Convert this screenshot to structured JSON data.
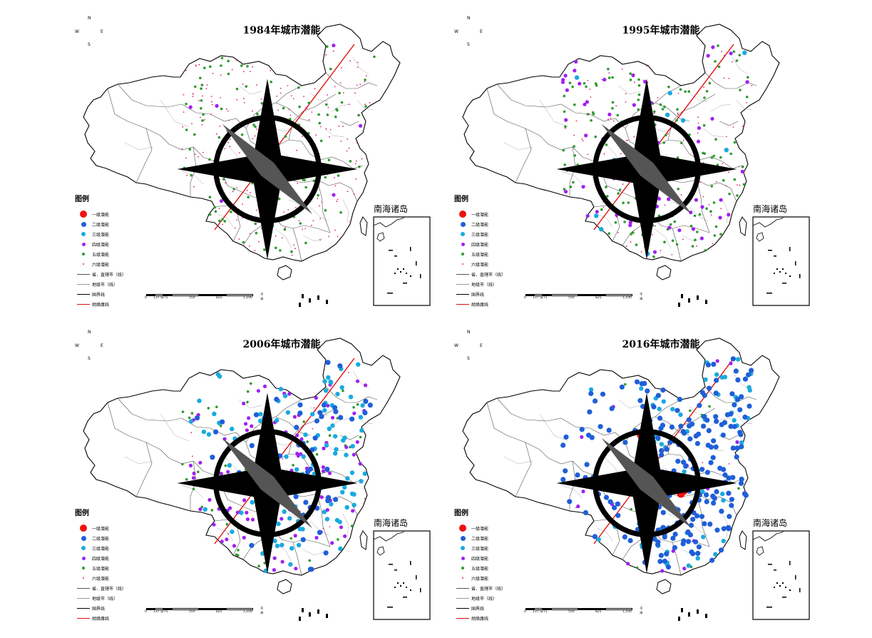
{
  "colors": {
    "level1": "#f01010",
    "level2": "#1f5fd8",
    "level3": "#1aa9e0",
    "level4": "#a020f0",
    "level5": "#2e9a2e",
    "level6": "#e0207a",
    "hu_line": "#e01010",
    "border": "#000000"
  },
  "compass": {
    "n": "N",
    "s": "S",
    "e": "E",
    "w": "W"
  },
  "inset_label": "南海诸岛",
  "legend": {
    "title": "图例",
    "items": [
      {
        "label": "一级潜能",
        "level": "level1",
        "kind": "dot",
        "r": 5
      },
      {
        "label": "二级潜能",
        "level": "level2",
        "kind": "dot",
        "r": 3.5
      },
      {
        "label": "三级潜能",
        "level": "level3",
        "kind": "dot",
        "r": 3
      },
      {
        "label": "四级潜能",
        "level": "level4",
        "kind": "dot",
        "r": 2.5
      },
      {
        "label": "五级潜能",
        "level": "level5",
        "kind": "dot",
        "r": 2
      },
      {
        "label": "六级潜能",
        "level": "level6",
        "kind": "dot",
        "r": 1
      },
      {
        "label": "省、直辖市（线）",
        "kind": "line",
        "stroke": "#555555"
      },
      {
        "label": "地级市（线）",
        "kind": "line",
        "stroke": "#999999"
      },
      {
        "label": "国界线",
        "kind": "line",
        "stroke": "#000000"
      },
      {
        "label": "胡焕庸线",
        "kind": "line",
        "stroke": "#e01010"
      }
    ]
  },
  "scale_bar": {
    "ticks": [
      "0",
      "137.5",
      "275",
      "550",
      "825",
      "1,100"
    ],
    "unit": "千米"
  },
  "maps": [
    {
      "year": 1984,
      "title": "1984年城市潜能",
      "distribution": {
        "level1": 0,
        "level2": 0,
        "level3": 0,
        "level4": 6,
        "level5": 120,
        "level6": 210
      }
    },
    {
      "year": 1995,
      "title": "1995年城市潜能",
      "distribution": {
        "level1": 0,
        "level2": 0,
        "level3": 12,
        "level4": 60,
        "level5": 150,
        "level6": 110
      }
    },
    {
      "year": 2006,
      "title": "2006年城市潜能",
      "distribution": {
        "level1": 0,
        "level2": 60,
        "level3": 110,
        "level4": 90,
        "level5": 45,
        "level6": 15
      }
    },
    {
      "year": 2016,
      "title": "2016年城市潜能",
      "distribution": {
        "level1": 6,
        "level2": 230,
        "level3": 70,
        "level4": 18,
        "level5": 12,
        "level6": 4
      }
    }
  ]
}
